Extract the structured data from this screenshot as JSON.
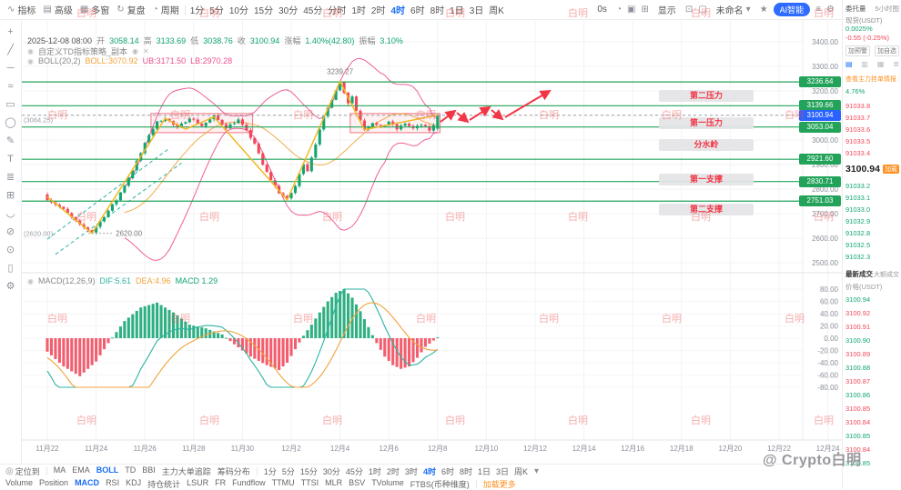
{
  "colors": {
    "up": "#12a571",
    "down": "#f0485a",
    "accent": "#1a6df5",
    "level": "#23a35a",
    "warn": "#f23645",
    "orange": "#ff8f1f",
    "pink": "#ec4f8e",
    "yellow": "#f0b821",
    "teal": "#2bb3a3",
    "amber": "#f2a33c",
    "current": "#2962ff"
  },
  "topbar": {
    "menus": [
      {
        "icon": "∿",
        "label": "指标"
      },
      {
        "icon": "▤",
        "label": "高级"
      },
      {
        "icon": "▦",
        "label": "多窗"
      },
      {
        "icon": "↻",
        "label": "复盘"
      },
      {
        "icon": "◔",
        "label": "周期"
      }
    ],
    "timeframes": [
      "1分",
      "5分",
      "10分",
      "15分",
      "30分",
      "45分",
      "分时",
      "1时",
      "2时",
      "4时",
      "6时",
      "8时",
      "1日",
      "3日",
      "周K"
    ],
    "active": "4时",
    "right": [
      {
        "label": "0s"
      },
      {
        "icon": "◔"
      },
      {
        "icon": "▣"
      },
      {
        "icon": "⊞"
      },
      {
        "label": "显示"
      },
      {
        "icon": "⊡"
      },
      {
        "icon": "▢"
      },
      {
        "label": "未命名",
        "caret": "▾"
      },
      {
        "icon": "★"
      },
      {
        "pill": "AI智能"
      },
      {
        "icon": "≡"
      },
      {
        "icon": "⚙"
      }
    ]
  },
  "left_toolbar": [
    {
      "name": "crosshair-tool",
      "glyph": "+"
    },
    {
      "name": "trendline-tool",
      "glyph": "╱"
    },
    {
      "name": "hline-tool",
      "glyph": "─"
    },
    {
      "name": "wave-tool",
      "glyph": "≈"
    },
    {
      "name": "rect-tool",
      "glyph": "▭"
    },
    {
      "name": "ellipse-tool",
      "glyph": "◯"
    },
    {
      "name": "pencil-tool",
      "glyph": "✎"
    },
    {
      "name": "text-tool",
      "glyph": "T"
    },
    {
      "name": "fib-tool",
      "glyph": "≣"
    },
    {
      "name": "measure-tool",
      "glyph": "⊞"
    },
    {
      "name": "magnet-tool",
      "glyph": "◡"
    },
    {
      "name": "eraser-tool",
      "glyph": "⊘"
    },
    {
      "name": "lock-tool",
      "glyph": "⊙"
    },
    {
      "name": "delete-tool",
      "glyph": "▯"
    },
    {
      "name": "settings-tool",
      "glyph": "⚙"
    }
  ],
  "chart": {
    "legend": {
      "datetime": "2025-12-08 08:00",
      "o_label": "开",
      "o": "3058.14",
      "h_label": "高",
      "h": "3133.69",
      "l_label": "低",
      "l": "3038.76",
      "c_label": "收",
      "c": "3100.94",
      "chg_label": "涨幅",
      "chg": "1.40%(42.80)",
      "amp_label": "振幅",
      "amp": "3.10%"
    },
    "strategy": "自定义TD指标策略_副本",
    "boll": {
      "name": "BOLL(20,2)",
      "mid": "BOLL:3070.92",
      "ub": "UB:3171.50",
      "lb": "LB:2970.28"
    },
    "macd": {
      "name": "MACD(12,26,9)",
      "dif": "DIF:5.61",
      "dea": "DEA:4.96",
      "macd": "MACD 1.29"
    },
    "peak_label": "3239.27",
    "low_label": "2620.00",
    "left_refs": [
      {
        "text": "(3084.25)",
        "p": 3084.25
      },
      {
        "text": "(2620.00)",
        "p": 2620
      }
    ],
    "y_ticks": [
      {
        "t": "3400.00",
        "p": 3400
      },
      {
        "t": "3300.00",
        "p": 3300
      },
      {
        "t": "3200.00",
        "p": 3200
      },
      {
        "t": "3100.00",
        "p": 3100
      },
      {
        "t": "3000.00",
        "p": 3000
      },
      {
        "t": "2900.00",
        "p": 2900
      },
      {
        "t": "2800.00",
        "p": 2800
      },
      {
        "t": "2700.00",
        "p": 2700
      },
      {
        "t": "2600.00",
        "p": 2600
      },
      {
        "t": "2500.00",
        "p": 2500
      }
    ],
    "macd_ticks": [
      {
        "t": "80.00",
        "v": 80
      },
      {
        "t": "60.00",
        "v": 60
      },
      {
        "t": "40.00",
        "v": 40
      },
      {
        "t": "20.00",
        "v": 20
      },
      {
        "t": "0.00",
        "v": 0
      },
      {
        "t": "-20.00",
        "v": -20
      },
      {
        "t": "-40.00",
        "v": -40
      },
      {
        "t": "-60.00",
        "v": -60
      },
      {
        "t": "-80.00",
        "v": -80
      }
    ],
    "x_ticks": [
      {
        "t": "11月22",
        "d": 0
      },
      {
        "t": "11月24",
        "d": 2
      },
      {
        "t": "11月26",
        "d": 4
      },
      {
        "t": "11月28",
        "d": 6
      },
      {
        "t": "11月30",
        "d": 8
      },
      {
        "t": "12月2",
        "d": 10
      },
      {
        "t": "12月4",
        "d": 12
      },
      {
        "t": "12月6",
        "d": 14
      },
      {
        "t": "12月8",
        "d": 16
      },
      {
        "t": "12月10",
        "d": 18
      },
      {
        "t": "12月12",
        "d": 20
      },
      {
        "t": "12月14",
        "d": 22
      },
      {
        "t": "12月16",
        "d": 24
      },
      {
        "t": "12月18",
        "d": 26
      },
      {
        "t": "12月20",
        "d": 28
      },
      {
        "t": "12月22",
        "d": 30
      },
      {
        "t": "12月24",
        "d": 32
      }
    ],
    "levels": [
      {
        "t": "3236.64",
        "p": 3236.64
      },
      {
        "t": "3139.66",
        "p": 3139.66
      },
      {
        "t": "3053.04",
        "p": 3053.04
      },
      {
        "t": "2921.60",
        "p": 2921.6
      },
      {
        "t": "2830.71",
        "p": 2830.71
      },
      {
        "t": "2751.03",
        "p": 2751.03
      }
    ],
    "current": {
      "t": "3100.94",
      "p": 3100.94
    },
    "zones": [
      {
        "label": "第二压力",
        "p": 3178
      },
      {
        "label": "第一压力",
        "p": 3070
      },
      {
        "label": "分水岭",
        "p": 2978
      },
      {
        "label": "第一支撑",
        "p": 2838
      },
      {
        "label": "第二支撑",
        "p": 2716
      }
    ]
  },
  "chart_data": {
    "type": "candlestick",
    "timeframe": "4h",
    "bars": 97,
    "ylim": [
      2500,
      3400
    ],
    "price_waypoints": [
      [
        0,
        2760
      ],
      [
        4,
        2716
      ],
      [
        8,
        2652
      ],
      [
        11,
        2625
      ],
      [
        14,
        2690
      ],
      [
        17,
        2756
      ],
      [
        20,
        2846
      ],
      [
        23,
        2946
      ],
      [
        25,
        3022
      ],
      [
        27,
        3072
      ],
      [
        29,
        3090
      ],
      [
        32,
        3048
      ],
      [
        35,
        3092
      ],
      [
        38,
        3058
      ],
      [
        41,
        3096
      ],
      [
        44,
        3052
      ],
      [
        47,
        3082
      ],
      [
        49,
        3036
      ],
      [
        51,
        2986
      ],
      [
        53,
        2898
      ],
      [
        55,
        2838
      ],
      [
        57,
        2786
      ],
      [
        59,
        2758
      ],
      [
        61,
        2812
      ],
      [
        63,
        2906
      ],
      [
        64,
        2876
      ],
      [
        66,
        2986
      ],
      [
        68,
        3092
      ],
      [
        70,
        3168
      ],
      [
        71,
        3206
      ],
      [
        72,
        3235
      ],
      [
        73,
        3196
      ],
      [
        74,
        3152
      ],
      [
        75,
        3178
      ],
      [
        76,
        3120
      ],
      [
        77,
        3082
      ],
      [
        78,
        3046
      ],
      [
        80,
        3072
      ],
      [
        82,
        3048
      ],
      [
        84,
        3076
      ],
      [
        86,
        3044
      ],
      [
        88,
        3068
      ],
      [
        90,
        3046
      ],
      [
        92,
        3062
      ],
      [
        94,
        3040
      ],
      [
        95,
        3058
      ],
      [
        96,
        3100.94
      ]
    ],
    "macd_waypoints": [
      [
        0,
        -22
      ],
      [
        4,
        -46
      ],
      [
        8,
        -62
      ],
      [
        12,
        -38
      ],
      [
        15,
        -8
      ],
      [
        19,
        28
      ],
      [
        23,
        50
      ],
      [
        27,
        58
      ],
      [
        31,
        42
      ],
      [
        35,
        22
      ],
      [
        39,
        16
      ],
      [
        43,
        6
      ],
      [
        46,
        -10
      ],
      [
        50,
        -30
      ],
      [
        54,
        -44
      ],
      [
        57,
        -52
      ],
      [
        59,
        -40
      ],
      [
        61,
        -18
      ],
      [
        63,
        4
      ],
      [
        65,
        22
      ],
      [
        67,
        42
      ],
      [
        69,
        60
      ],
      [
        71,
        74
      ],
      [
        73,
        80
      ],
      [
        75,
        66
      ],
      [
        77,
        44
      ],
      [
        79,
        18
      ],
      [
        81,
        -8
      ],
      [
        83,
        -30
      ],
      [
        85,
        -44
      ],
      [
        87,
        -50
      ],
      [
        89,
        -46
      ],
      [
        91,
        -32
      ],
      [
        93,
        -14
      ],
      [
        96,
        1.29
      ]
    ],
    "zigzag": [
      [
        0,
        2768
      ],
      [
        11,
        2620
      ],
      [
        29,
        3088
      ],
      [
        34,
        3044
      ],
      [
        41,
        3094
      ],
      [
        59,
        2756
      ],
      [
        72,
        3239
      ],
      [
        78,
        3042
      ],
      [
        96,
        3101
      ]
    ],
    "boxes": [
      {
        "i0": 25.5,
        "i1": 50.5,
        "p0": 3030,
        "p1": 3108
      },
      {
        "i0": 74.5,
        "i1": 96.6,
        "p0": 3030,
        "p1": 3108
      }
    ],
    "trend_dashes": [
      [
        0,
        2596,
        30,
        2966
      ],
      [
        2,
        2534,
        33,
        2906
      ]
    ],
    "arrows": [
      [
        460,
        112,
        476,
        100
      ],
      [
        478,
        102,
        490,
        112
      ],
      [
        492,
        110,
        514,
        96
      ],
      [
        516,
        99,
        528,
        109
      ],
      [
        531,
        107,
        580,
        78
      ]
    ],
    "peak": 3239.27,
    "low": 2620.0
  },
  "sidebar": {
    "header": {
      "title": "委托量",
      "tag": "5小时图"
    },
    "market": {
      "pair_label": "现货(USDT)",
      "funding": "0.0025%",
      "change": "-0.55",
      "change_pct": "(-0.25%)"
    },
    "buttons": [
      "加预警",
      "加自选"
    ],
    "tabs": [
      "▤",
      "▥",
      "▦",
      "≣"
    ],
    "link": "查看主力挂单情报 >",
    "ratio": "4.76%",
    "asks": [
      "91033.8",
      "91033.7",
      "91033.6",
      "91033.5",
      "91033.4"
    ],
    "last": "3100.94",
    "load_chip": "加载",
    "bids": [
      "91033.2",
      "91033.1",
      "91033.0",
      "91032.9",
      "91032.8",
      "91032.5",
      "91032.3"
    ],
    "trades_title": "最新成交",
    "trades_alt": "大额成交",
    "col": "价格(USDT)",
    "trades": [
      {
        "p": "3100.94",
        "s": "u"
      },
      {
        "p": "3100.92",
        "s": "d"
      },
      {
        "p": "3100.91",
        "s": "d"
      },
      {
        "p": "3100.90",
        "s": "u"
      },
      {
        "p": "3100.89",
        "s": "d"
      },
      {
        "p": "3100.88",
        "s": "u"
      },
      {
        "p": "3100.87",
        "s": "d"
      },
      {
        "p": "3100.86",
        "s": "u"
      },
      {
        "p": "3100.85",
        "s": "d"
      },
      {
        "p": "3100.84",
        "s": "d"
      },
      {
        "p": "3100.85",
        "s": "u"
      },
      {
        "p": "3100.84",
        "s": "d"
      },
      {
        "p": "3100.85",
        "s": "u"
      }
    ]
  },
  "bottombar": {
    "locate": "定位到",
    "overlays": [
      "MA",
      "EMA",
      "BOLL",
      "TD",
      "BBI",
      "主力大单追踪",
      "筹码分布"
    ],
    "overlays_active": "BOLL",
    "timeframes": [
      "1分",
      "5分",
      "15分",
      "30分",
      "45分",
      "1时",
      "2时",
      "3时",
      "4时",
      "6时",
      "8时",
      "1日",
      "3日",
      "周K"
    ],
    "tf_active": "4时",
    "tf_caret": "▾",
    "indicators": [
      "Volume",
      "Position",
      "MACD",
      "RSI",
      "KDJ",
      "持仓统计",
      "LSUR",
      "FR",
      "Fundflow",
      "TTMU",
      "TTSI",
      "MLR",
      "BSV",
      "TVolume",
      "FTBS(币种维度)"
    ],
    "ind_active": "MACD",
    "load_more": "加载更多"
  },
  "watermark": {
    "tile": "白明",
    "signature": "@ Crypto白明"
  }
}
